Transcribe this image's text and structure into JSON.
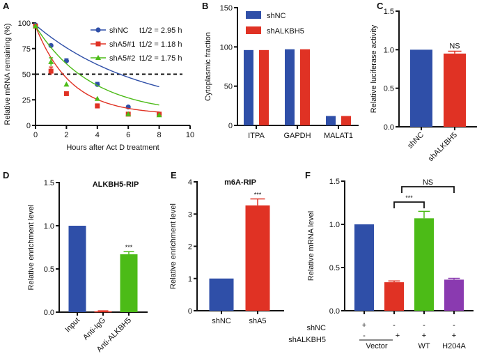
{
  "colors": {
    "blue": "#2f4fa8",
    "red": "#e03224",
    "green": "#4cbb17",
    "purple": "#8a3ab0",
    "axis": "#111111"
  },
  "chart_data": [
    {
      "panel": "A",
      "type": "line",
      "title": "",
      "xlabel": "Hours after Act D treatment",
      "ylabel": "Relative mRNA remaining (%)",
      "xlim": [
        0,
        10
      ],
      "ylim": [
        0,
        100
      ],
      "xticks": [
        "0",
        "2",
        "4",
        "6",
        "8",
        "10"
      ],
      "yticks": [
        "0",
        "25",
        "50",
        "75",
        "100"
      ],
      "reference_line": {
        "y": 50,
        "style": "dashed"
      },
      "legend": "top-right",
      "x": [
        0,
        1,
        2,
        4,
        6,
        8
      ],
      "series": [
        {
          "name": "shNC",
          "half_life": "t1/2 = 2.95 h",
          "marker": "circle",
          "color": "blue",
          "values": [
            98,
            78,
            63,
            40,
            18,
            11
          ],
          "errors": [
            1,
            1,
            2,
            2,
            1,
            1
          ]
        },
        {
          "name": "shA5#1",
          "half_life": "t1/2 = 1.18 h",
          "marker": "square",
          "color": "red",
          "values": [
            97,
            53,
            31,
            19,
            11,
            11
          ],
          "errors": [
            1,
            4,
            1,
            2,
            1,
            1
          ]
        },
        {
          "name": "shA5#2",
          "half_life": "t1/2 = 1.75 h",
          "marker": "triangle",
          "color": "green",
          "values": [
            97,
            62,
            40,
            26,
            11,
            10
          ],
          "errors": [
            1,
            4,
            1,
            1,
            1,
            1
          ]
        }
      ]
    },
    {
      "panel": "B",
      "type": "bar",
      "title": "",
      "xlabel": "",
      "ylabel": "Cytoplasmic fraction",
      "ylim": [
        0,
        150
      ],
      "yticks": [
        "0",
        "50",
        "100",
        "150"
      ],
      "categories": [
        "ITPA",
        "GAPDH",
        "MALAT1"
      ],
      "legend": "top-left",
      "series": [
        {
          "name": "shNC",
          "color": "blue",
          "values": [
            96,
            97,
            12
          ]
        },
        {
          "name": "shALKBH5",
          "color": "red",
          "values": [
            96,
            97,
            12
          ]
        }
      ]
    },
    {
      "panel": "C",
      "type": "bar",
      "title": "",
      "xlabel": "",
      "ylabel": "Relative luciferase activity",
      "ylim": [
        0,
        1.5
      ],
      "yticks": [
        "0.0",
        "0.5",
        "1.0",
        "1.5"
      ],
      "categories": [
        "shNC",
        "shALKBH5"
      ],
      "values": [
        1.0,
        0.95
      ],
      "errors": [
        0,
        0.03
      ],
      "colors": [
        "blue",
        "red"
      ],
      "annotations": [
        {
          "category": "shALKBH5",
          "text": "NS"
        }
      ]
    },
    {
      "panel": "D",
      "type": "bar",
      "title": "ALKBH5-RIP",
      "xlabel": "",
      "ylabel": "Relative enrichment level",
      "ylim": [
        0,
        1.5
      ],
      "yticks": [
        "0.0",
        "0.5",
        "1.0",
        "1.5"
      ],
      "categories": [
        "Input",
        "Anti-IgG",
        "Anti-ALKBH5"
      ],
      "values": [
        1.0,
        0.01,
        0.67
      ],
      "errors": [
        0,
        0.005,
        0.03
      ],
      "colors": [
        "blue",
        "red",
        "green"
      ],
      "annotations": [
        {
          "category": "Anti-ALKBH5",
          "text": "***"
        }
      ]
    },
    {
      "panel": "E",
      "type": "bar",
      "title": "m6A-RIP",
      "xlabel": "",
      "ylabel": "Relative enrichment level",
      "ylim": [
        0,
        4
      ],
      "yticks": [
        "0",
        "1",
        "2",
        "3",
        "4"
      ],
      "categories": [
        "shNC",
        "shA5"
      ],
      "values": [
        1.0,
        3.27
      ],
      "errors": [
        0,
        0.2
      ],
      "colors": [
        "blue",
        "red"
      ],
      "annotations": [
        {
          "category": "shA5",
          "text": "***"
        }
      ]
    },
    {
      "panel": "F",
      "type": "bar",
      "title": "",
      "xlabel": "",
      "ylabel": "Relative mRNA level",
      "ylim": [
        0,
        1.5
      ],
      "yticks": [
        "0.0",
        "0.5",
        "1.0",
        "1.5"
      ],
      "categories": [
        "shNC + Vector",
        "shALKBH5 + Vector",
        "shALKBH5 + WT",
        "shALKBH5 + H204A"
      ],
      "values": [
        1.0,
        0.33,
        1.07,
        0.36
      ],
      "errors": [
        0,
        0.015,
        0.08,
        0.015
      ],
      "colors": [
        "blue",
        "red",
        "green",
        "purple"
      ],
      "condition_rows": [
        {
          "label": "shNC",
          "marks": [
            "+",
            "-",
            "-",
            "-"
          ]
        },
        {
          "label": "shALKBH5",
          "marks": [
            "-",
            "+",
            "+",
            "+"
          ]
        }
      ],
      "group_labels": [
        "Vector",
        "WT",
        "H204A"
      ],
      "comparisons": [
        {
          "from": 1,
          "to": 2,
          "text": "***"
        },
        {
          "from": 1,
          "to": 3,
          "text": "NS"
        }
      ]
    }
  ]
}
